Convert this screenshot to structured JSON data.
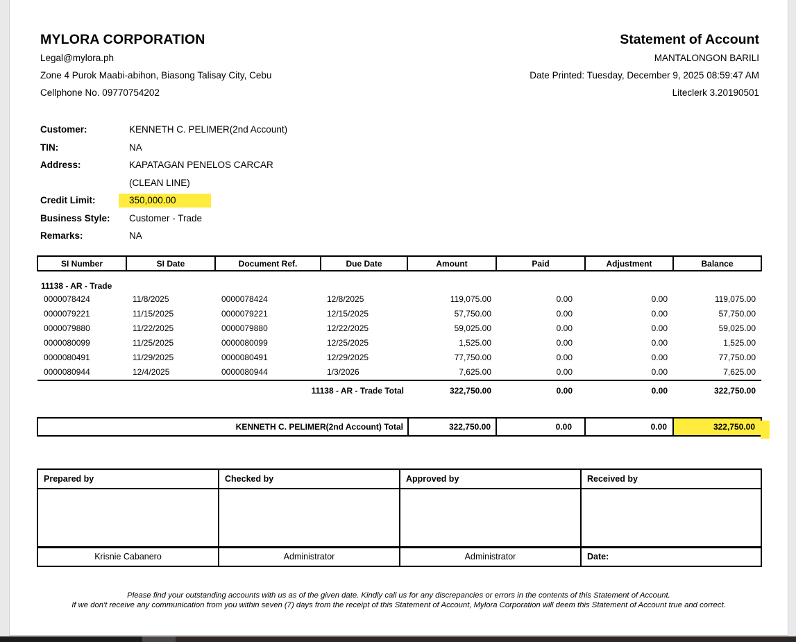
{
  "header": {
    "company_name": "MYLORA CORPORATION",
    "email": "Legal@mylora.ph",
    "address": "Zone 4 Purok Maabi-abihon, Biasong Talisay City, Cebu",
    "phone": "Cellphone No. 09770754202",
    "doc_title": "Statement of Account",
    "branch": "MANTALONGON BARILI",
    "date_printed": "Date Printed: Tuesday, December 9, 2025 08:59:47 AM",
    "software_version": "Liteclerk 3.20190501"
  },
  "customer": {
    "customer_label": "Customer:",
    "customer_value": "KENNETH C. PELIMER(2nd Account)",
    "tin_label": "TIN:",
    "tin_value": "NA",
    "address_label": "Address:",
    "address_value": "KAPATAGAN PENELOS CARCAR",
    "address_value2": "(CLEAN LINE)",
    "credit_limit_label": "Credit Limit:",
    "credit_limit_value": "350,000.00",
    "business_style_label": "Business Style:",
    "business_style_value": "Customer - Trade",
    "remarks_label": "Remarks:",
    "remarks_value": "NA"
  },
  "table": {
    "columns": [
      "SI Number",
      "SI Date",
      "Document Ref.",
      "Due Date",
      "Amount",
      "Paid",
      "Adjustment",
      "Balance"
    ],
    "group_label": "11138 - AR - Trade",
    "rows": [
      [
        "0000078424",
        "11/8/2025",
        "0000078424",
        "12/8/2025",
        "119,075.00",
        "0.00",
        "0.00",
        "119,075.00"
      ],
      [
        "0000079221",
        "11/15/2025",
        "0000079221",
        "12/15/2025",
        "57,750.00",
        "0.00",
        "0.00",
        "57,750.00"
      ],
      [
        "0000079880",
        "11/22/2025",
        "0000079880",
        "12/22/2025",
        "59,025.00",
        "0.00",
        "0.00",
        "59,025.00"
      ],
      [
        "0000080099",
        "11/25/2025",
        "0000080099",
        "12/25/2025",
        "1,525.00",
        "0.00",
        "0.00",
        "1,525.00"
      ],
      [
        "0000080491",
        "11/29/2025",
        "0000080491",
        "12/29/2025",
        "77,750.00",
        "0.00",
        "0.00",
        "77,750.00"
      ],
      [
        "0000080944",
        "12/4/2025",
        "0000080944",
        "1/3/2026",
        "7,625.00",
        "0.00",
        "0.00",
        "7,625.00"
      ]
    ],
    "group_total": {
      "label": "11138 - AR - Trade Total",
      "amount": "322,750.00",
      "paid": "0.00",
      "adjustment": "0.00",
      "balance": "322,750.00"
    },
    "grand_total": {
      "label": "KENNETH C. PELIMER(2nd Account) Total",
      "amount": "322,750.00",
      "paid": "0.00",
      "adjustment": "0.00",
      "balance": "322,750.00"
    }
  },
  "signatures": {
    "prepared_by_label": "Prepared by",
    "checked_by_label": "Checked by",
    "approved_by_label": "Approved by",
    "received_by_label": "Received by",
    "prepared_by_name": "Krisnie Cabanero",
    "checked_by_name": "Administrator",
    "approved_by_name": "Administrator",
    "date_label": "Date:"
  },
  "footer": {
    "line1": "Please find your outstanding accounts with us as of the given date. Kindly call us for any discrepancies or errors in the contents of this Statement of Account.",
    "line2": "If we don't receive any communication from you within seven (7) days from the receipt of this Statement of Account, Mylora Corporation will deem this Statement of Account true and correct."
  },
  "colors": {
    "highlight": "#ffec3d",
    "outer-bg": "#e9e9e9",
    "bar-dark": "#1d1b1d",
    "bar-brown": "#2f2723",
    "thumb": "#4a4547"
  }
}
